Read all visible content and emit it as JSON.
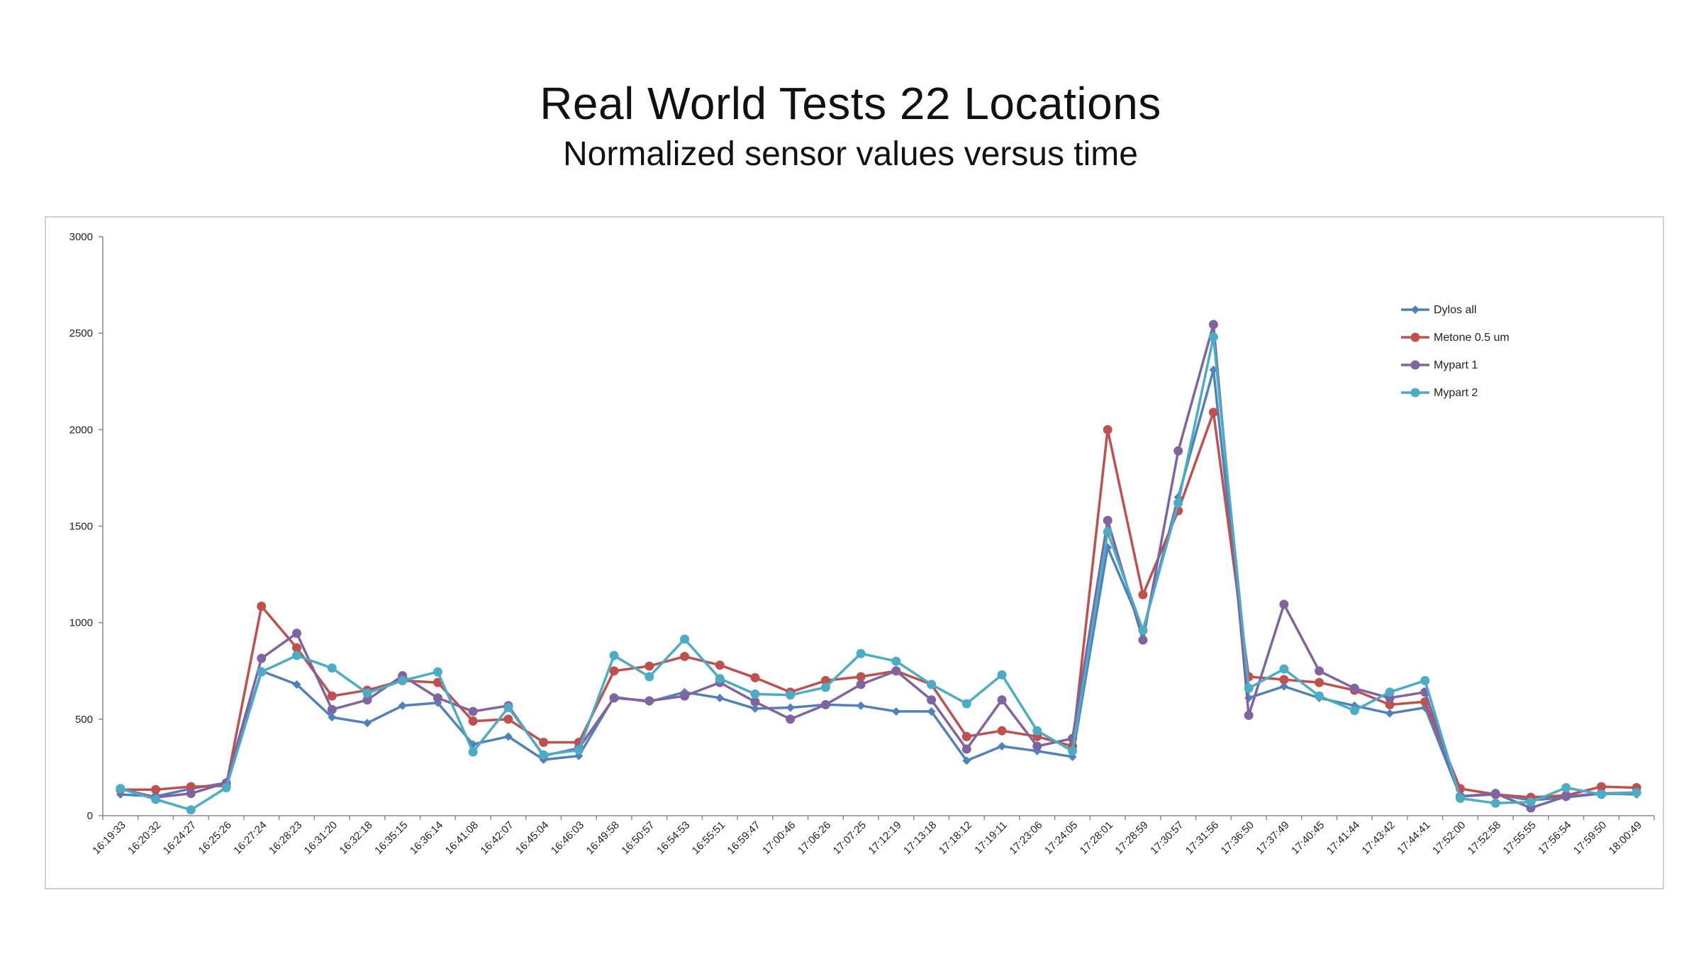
{
  "page": {
    "title": "Real World Tests 22 Locations",
    "subtitle": "Normalized sensor values versus time"
  },
  "chart_data": {
    "type": "line",
    "title": "Real World Tests 22 Locations",
    "subtitle": "Normalized sensor values versus time",
    "xlabel": "",
    "ylabel": "",
    "ylim": [
      0,
      3000
    ],
    "yticks": [
      0,
      500,
      1000,
      1500,
      2000,
      2500,
      3000
    ],
    "grid": false,
    "legend_position": "top-right",
    "x": [
      "16:19:33",
      "16:20:32",
      "16:24:27",
      "16:25:26",
      "16:27:24",
      "16:28:23",
      "16:31:20",
      "16:32:18",
      "16:35:15",
      "16:36:14",
      "16:41:08",
      "16:42:07",
      "16:45:04",
      "16:46:03",
      "16:49:58",
      "16:50:57",
      "16:54:53",
      "16:55:51",
      "16:59:47",
      "17:00:46",
      "17:06:26",
      "17:07:25",
      "17:12:19",
      "17:13:18",
      "17:18:12",
      "17:19:11",
      "17:23:06",
      "17:24:05",
      "17:28:01",
      "17:28:59",
      "17:30:57",
      "17:31:56",
      "17:36:50",
      "17:37:49",
      "17:40:45",
      "17:41:44",
      "17:43:42",
      "17:44:41",
      "17:52:00",
      "17:52:58",
      "17:55:55",
      "17:56:54",
      "17:59:50",
      "18:00:49"
    ],
    "series": [
      {
        "name": "Dylos all",
        "color": "#4f81bd",
        "marker": "diamond",
        "values": [
          110,
          100,
          140,
          170,
          750,
          680,
          510,
          480,
          570,
          585,
          370,
          410,
          290,
          310,
          615,
          590,
          640,
          610,
          555,
          560,
          575,
          570,
          540,
          540,
          285,
          360,
          335,
          305,
          1390,
          960,
          1650,
          2310,
          610,
          670,
          610,
          570,
          530,
          560,
          100,
          110,
          80,
          95,
          115,
          110
        ]
      },
      {
        "name": "Metone 0.5 um",
        "color": "#c0504d",
        "marker": "circle",
        "values": [
          135,
          135,
          150,
          155,
          1085,
          870,
          620,
          650,
          700,
          690,
          490,
          500,
          380,
          380,
          750,
          775,
          825,
          780,
          715,
          640,
          700,
          720,
          750,
          680,
          410,
          440,
          410,
          360,
          2000,
          1145,
          1580,
          2090,
          720,
          705,
          690,
          650,
          575,
          590,
          140,
          110,
          95,
          105,
          150,
          145
        ]
      },
      {
        "name": "Mypart 1",
        "color": "#8064a2",
        "marker": "circle",
        "values": [
          140,
          95,
          115,
          170,
          815,
          945,
          550,
          600,
          725,
          610,
          540,
          570,
          310,
          350,
          610,
          595,
          620,
          690,
          590,
          500,
          575,
          680,
          750,
          600,
          345,
          600,
          360,
          400,
          1530,
          910,
          1890,
          2545,
          520,
          1095,
          750,
          660,
          610,
          640,
          100,
          115,
          40,
          100,
          115,
          120
        ]
      },
      {
        "name": "Mypart 2",
        "color": "#4bacc6",
        "marker": "circle",
        "values": [
          140,
          85,
          30,
          145,
          745,
          830,
          765,
          635,
          700,
          745,
          330,
          560,
          315,
          340,
          830,
          720,
          915,
          710,
          630,
          625,
          665,
          840,
          800,
          680,
          580,
          730,
          440,
          335,
          1470,
          960,
          1620,
          2480,
          660,
          760,
          620,
          545,
          640,
          700,
          90,
          65,
          70,
          145,
          110,
          120
        ]
      }
    ]
  }
}
